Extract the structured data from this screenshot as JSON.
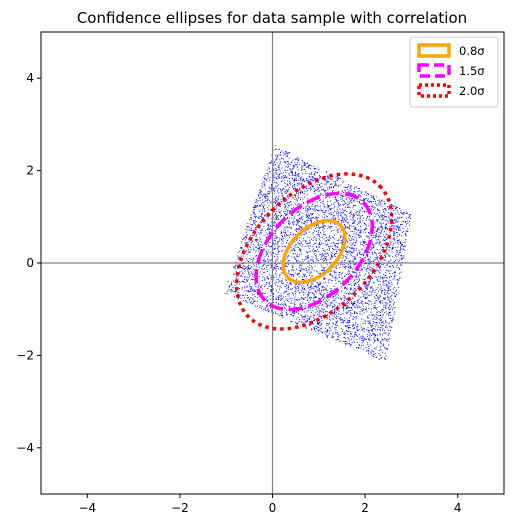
{
  "chart_data": {
    "type": "scatter",
    "title": "Confidence ellipses for data sample with correlation",
    "xlabel": "",
    "ylabel": "",
    "xlim": [
      -5,
      5
    ],
    "ylim": [
      -5,
      5
    ],
    "xticks": [
      -4,
      -2,
      0,
      2,
      4
    ],
    "yticks": [
      -4,
      -2,
      0,
      2,
      4
    ],
    "x_tick_labels": [
      "−4",
      "−2",
      "0",
      "2",
      "4"
    ],
    "y_tick_labels": [
      "−4",
      "−2",
      "0",
      "2",
      "4"
    ],
    "grid": false,
    "reference_lines": [
      {
        "orientation": "vertical",
        "value": 0,
        "color": "#808080"
      },
      {
        "orientation": "horizontal",
        "value": 0,
        "color": "#808080"
      }
    ],
    "scatter": {
      "color": "#0000ff",
      "point_count": 5000,
      "region_corners": [
        [
          -1.05,
          -0.65
        ],
        [
          0.05,
          2.55
        ],
        [
          3.0,
          1.05
        ],
        [
          2.45,
          -2.15
        ]
      ]
    },
    "ellipses": [
      {
        "label": "0.8σ",
        "n_std": 0.8,
        "center": [
          0.9,
          0.25
        ],
        "rx": 0.8,
        "ry": 0.5,
        "angle_deg": 45,
        "color": "#ffa500",
        "style": "solid"
      },
      {
        "label": "1.5σ",
        "n_std": 1.5,
        "center": [
          0.9,
          0.25
        ],
        "rx": 1.5,
        "ry": 0.95,
        "angle_deg": 45,
        "color": "#ff00ff",
        "style": "dashed"
      },
      {
        "label": "2.0σ",
        "n_std": 2.0,
        "center": [
          0.9,
          0.25
        ],
        "rx": 2.0,
        "ry": 1.27,
        "angle_deg": 45,
        "color": "#ff0000",
        "style": "dotted"
      }
    ],
    "legend": {
      "placement": "top-right",
      "entries": [
        {
          "label": "0.8σ",
          "color": "#ffa500",
          "style": "solid"
        },
        {
          "label": "1.5σ",
          "color": "#ff00ff",
          "style": "dashed"
        },
        {
          "label": "2.0σ",
          "color": "#ff0000",
          "style": "dotted"
        }
      ]
    }
  }
}
